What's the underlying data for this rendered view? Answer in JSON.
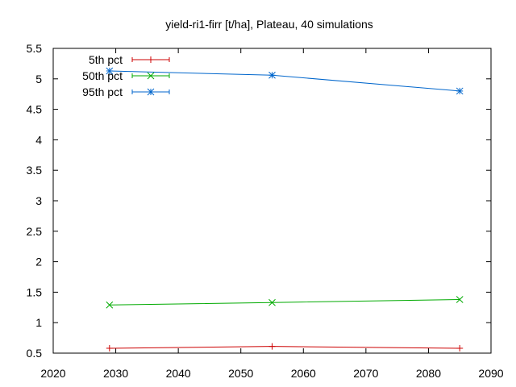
{
  "chart_data": {
    "type": "line",
    "title": "yield-ri1-firr [t/ha], Plateau, 40 simulations",
    "xlabel": "",
    "ylabel": "",
    "xlim": [
      2020,
      2090
    ],
    "ylim": [
      0.5,
      5.5
    ],
    "xticks": [
      2020,
      2030,
      2040,
      2050,
      2060,
      2070,
      2080,
      2090
    ],
    "yticks": [
      0.5,
      1,
      1.5,
      2,
      2.5,
      3,
      3.5,
      4,
      4.5,
      5,
      5.5
    ],
    "xtick_labels": [
      "2020",
      "2030",
      "2040",
      "2050",
      "2060",
      "2070",
      "2080",
      "2090"
    ],
    "ytick_labels": [
      "0.5",
      "1",
      "1.5",
      "2",
      "2.5",
      "3",
      "3.5",
      "4",
      "4.5",
      "5",
      "5.5"
    ],
    "grid": false,
    "legend_position": "top-left",
    "x": [
      2029,
      2055,
      2085
    ],
    "series": [
      {
        "name": "5th pct",
        "color": "#cc0000",
        "marker": "plus",
        "values": [
          0.58,
          0.61,
          0.58
        ]
      },
      {
        "name": "50th pct",
        "color": "#00aa00",
        "marker": "cross",
        "values": [
          1.29,
          1.33,
          1.38
        ]
      },
      {
        "name": "95th pct",
        "color": "#0066cc",
        "marker": "star",
        "values": [
          5.13,
          5.06,
          4.8
        ]
      }
    ]
  }
}
